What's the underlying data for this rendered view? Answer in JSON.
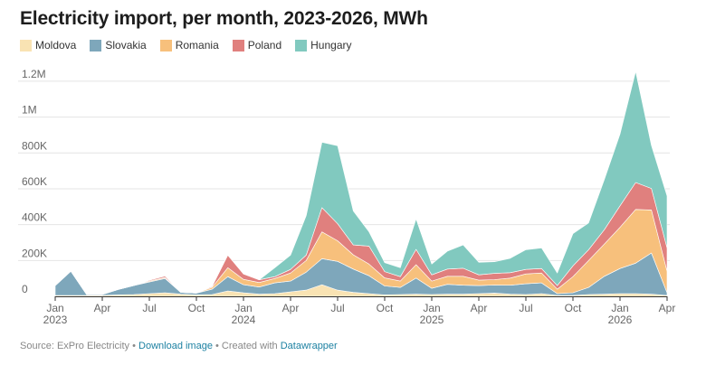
{
  "chart_data": {
    "type": "area",
    "stacked": true,
    "title": "Electricity import, per month, 2023-2026, MWh",
    "x": [
      "Jan 2023",
      "Feb 2023",
      "Mar 2023",
      "Apr 2023",
      "May 2023",
      "Jun 2023",
      "Jul 2023",
      "Aug 2023",
      "Sep 2023",
      "Oct 2023",
      "Nov 2023",
      "Dec 2023",
      "Jan 2024",
      "Feb 2024",
      "Mar 2024",
      "Apr 2024",
      "May 2024",
      "Jun 2024",
      "Jul 2024",
      "Aug 2024",
      "Sep 2024",
      "Oct 2024",
      "Nov 2024",
      "Dec 2024",
      "Jan 2025",
      "Feb 2025",
      "Mar 2025",
      "Apr 2025",
      "May 2025",
      "Jun 2025",
      "Jul 2025",
      "Aug 2025",
      "Sep 2025",
      "Oct 2025",
      "Nov 2025",
      "Dec 2025",
      "Jan 2026",
      "Feb 2026",
      "Mar 2026",
      "Apr 2026"
    ],
    "series": [
      {
        "name": "Moldova",
        "color": "#f9e3b3",
        "values": [
          5000,
          5000,
          5000,
          5000,
          8000,
          10000,
          15000,
          20000,
          12000,
          8000,
          10000,
          30000,
          20000,
          12000,
          15000,
          25000,
          35000,
          65000,
          35000,
          22000,
          15000,
          8000,
          10000,
          12000,
          10000,
          12000,
          12000,
          15000,
          18000,
          12000,
          10000,
          15000,
          5000,
          5000,
          10000,
          12000,
          15000,
          15000,
          12000,
          5000
        ]
      },
      {
        "name": "Slovakia",
        "color": "#7ea7bb",
        "values": [
          55000,
          135000,
          5000,
          5000,
          30000,
          50000,
          65000,
          80000,
          10000,
          10000,
          30000,
          80000,
          45000,
          40000,
          60000,
          60000,
          100000,
          145000,
          160000,
          130000,
          100000,
          50000,
          40000,
          90000,
          35000,
          55000,
          50000,
          45000,
          45000,
          50000,
          60000,
          60000,
          10000,
          15000,
          40000,
          100000,
          140000,
          170000,
          230000,
          15000
        ]
      },
      {
        "name": "Romania",
        "color": "#f7c07c",
        "values": [
          0,
          0,
          0,
          0,
          0,
          0,
          5000,
          5000,
          0,
          0,
          10000,
          50000,
          30000,
          25000,
          25000,
          45000,
          65000,
          150000,
          115000,
          80000,
          65000,
          45000,
          35000,
          75000,
          40000,
          45000,
          50000,
          30000,
          30000,
          40000,
          55000,
          55000,
          25000,
          90000,
          150000,
          180000,
          230000,
          300000,
          240000,
          120000
        ]
      },
      {
        "name": "Poland",
        "color": "#e0807e",
        "values": [
          0,
          0,
          0,
          0,
          0,
          0,
          5000,
          8000,
          0,
          0,
          5000,
          70000,
          30000,
          15000,
          10000,
          20000,
          30000,
          135000,
          95000,
          55000,
          100000,
          35000,
          25000,
          85000,
          35000,
          40000,
          45000,
          30000,
          35000,
          30000,
          25000,
          25000,
          20000,
          60000,
          60000,
          80000,
          120000,
          150000,
          120000,
          130000
        ]
      },
      {
        "name": "Hungary",
        "color": "#81c9bf",
        "values": [
          0,
          0,
          0,
          0,
          0,
          0,
          0,
          0,
          0,
          0,
          0,
          0,
          0,
          0,
          50000,
          80000,
          220000,
          365000,
          435000,
          190000,
          80000,
          50000,
          50000,
          170000,
          60000,
          100000,
          130000,
          70000,
          65000,
          80000,
          110000,
          115000,
          70000,
          180000,
          150000,
          280000,
          400000,
          620000,
          240000,
          290000
        ]
      }
    ],
    "x_tick_labels": [
      {
        "index": 0,
        "label": "Jan",
        "year": "2023"
      },
      {
        "index": 3,
        "label": "Apr",
        "year": ""
      },
      {
        "index": 6,
        "label": "Jul",
        "year": ""
      },
      {
        "index": 9,
        "label": "Oct",
        "year": ""
      },
      {
        "index": 12,
        "label": "Jan",
        "year": "2024"
      },
      {
        "index": 15,
        "label": "Apr",
        "year": ""
      },
      {
        "index": 18,
        "label": "Jul",
        "year": ""
      },
      {
        "index": 21,
        "label": "Oct",
        "year": ""
      },
      {
        "index": 24,
        "label": "Jan",
        "year": "2025"
      },
      {
        "index": 27,
        "label": "Apr",
        "year": ""
      },
      {
        "index": 30,
        "label": "Jul",
        "year": ""
      },
      {
        "index": 33,
        "label": "Oct",
        "year": ""
      },
      {
        "index": 36,
        "label": "Jan",
        "year": "2026"
      },
      {
        "index": 39,
        "label": "Apr",
        "year": ""
      }
    ],
    "y_ticks": [
      {
        "value": 0,
        "label": "0"
      },
      {
        "value": 200000,
        "label": "200K"
      },
      {
        "value": 400000,
        "label": "400K"
      },
      {
        "value": 600000,
        "label": "600K"
      },
      {
        "value": 800000,
        "label": "800K"
      },
      {
        "value": 1000000,
        "label": "1M"
      },
      {
        "value": 1200000,
        "label": "1.2M"
      }
    ],
    "ylim": [
      0,
      1250000
    ],
    "grid": true,
    "legend_position": "top-left"
  },
  "footer": {
    "source_text": "Source: ExPro Electricity",
    "sep1": " • ",
    "download_link": "Download image",
    "sep2": " • Created with ",
    "datawrapper_link": "Datawrapper"
  }
}
